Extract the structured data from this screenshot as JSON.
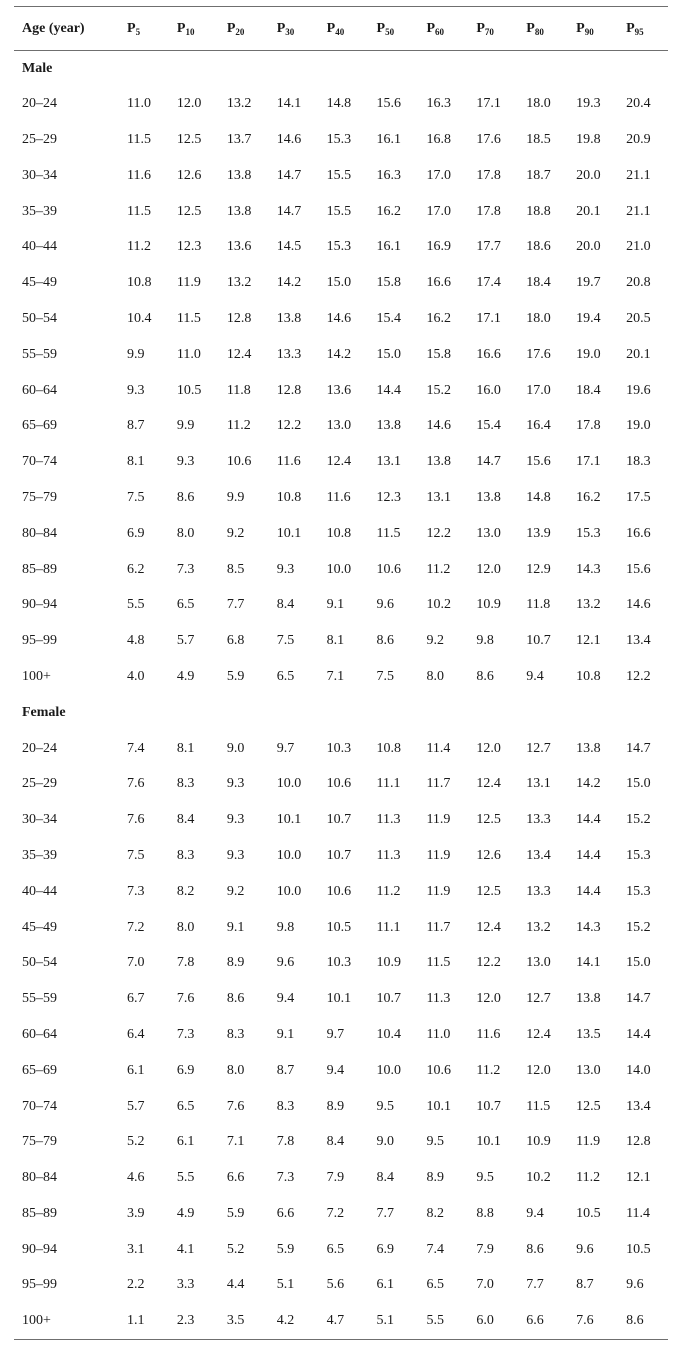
{
  "header": {
    "age_label": "Age (year)",
    "percentiles": [
      {
        "base": "P",
        "sub": "5"
      },
      {
        "base": "P",
        "sub": "10"
      },
      {
        "base": "P",
        "sub": "20"
      },
      {
        "base": "P",
        "sub": "30"
      },
      {
        "base": "P",
        "sub": "40"
      },
      {
        "base": "P",
        "sub": "50"
      },
      {
        "base": "P",
        "sub": "60"
      },
      {
        "base": "P",
        "sub": "70"
      },
      {
        "base": "P",
        "sub": "80"
      },
      {
        "base": "P",
        "sub": "90"
      },
      {
        "base": "P",
        "sub": "95"
      }
    ]
  },
  "groups": [
    {
      "label": "Male",
      "rows": [
        {
          "age": "20–24",
          "values": [
            "11.0",
            "12.0",
            "13.2",
            "14.1",
            "14.8",
            "15.6",
            "16.3",
            "17.1",
            "18.0",
            "19.3",
            "20.4"
          ]
        },
        {
          "age": "25–29",
          "values": [
            "11.5",
            "12.5",
            "13.7",
            "14.6",
            "15.3",
            "16.1",
            "16.8",
            "17.6",
            "18.5",
            "19.8",
            "20.9"
          ]
        },
        {
          "age": "30–34",
          "values": [
            "11.6",
            "12.6",
            "13.8",
            "14.7",
            "15.5",
            "16.3",
            "17.0",
            "17.8",
            "18.7",
            "20.0",
            "21.1"
          ]
        },
        {
          "age": "35–39",
          "values": [
            "11.5",
            "12.5",
            "13.8",
            "14.7",
            "15.5",
            "16.2",
            "17.0",
            "17.8",
            "18.8",
            "20.1",
            "21.1"
          ]
        },
        {
          "age": "40–44",
          "values": [
            "11.2",
            "12.3",
            "13.6",
            "14.5",
            "15.3",
            "16.1",
            "16.9",
            "17.7",
            "18.6",
            "20.0",
            "21.0"
          ]
        },
        {
          "age": "45–49",
          "values": [
            "10.8",
            "11.9",
            "13.2",
            "14.2",
            "15.0",
            "15.8",
            "16.6",
            "17.4",
            "18.4",
            "19.7",
            "20.8"
          ]
        },
        {
          "age": "50–54",
          "values": [
            "10.4",
            "11.5",
            "12.8",
            "13.8",
            "14.6",
            "15.4",
            "16.2",
            "17.1",
            "18.0",
            "19.4",
            "20.5"
          ]
        },
        {
          "age": "55–59",
          "values": [
            "9.9",
            "11.0",
            "12.4",
            "13.3",
            "14.2",
            "15.0",
            "15.8",
            "16.6",
            "17.6",
            "19.0",
            "20.1"
          ]
        },
        {
          "age": "60–64",
          "values": [
            "9.3",
            "10.5",
            "11.8",
            "12.8",
            "13.6",
            "14.4",
            "15.2",
            "16.0",
            "17.0",
            "18.4",
            "19.6"
          ]
        },
        {
          "age": "65–69",
          "values": [
            "8.7",
            "9.9",
            "11.2",
            "12.2",
            "13.0",
            "13.8",
            "14.6",
            "15.4",
            "16.4",
            "17.8",
            "19.0"
          ]
        },
        {
          "age": "70–74",
          "values": [
            "8.1",
            "9.3",
            "10.6",
            "11.6",
            "12.4",
            "13.1",
            "13.8",
            "14.7",
            "15.6",
            "17.1",
            "18.3"
          ]
        },
        {
          "age": "75–79",
          "values": [
            "7.5",
            "8.6",
            "9.9",
            "10.8",
            "11.6",
            "12.3",
            "13.1",
            "13.8",
            "14.8",
            "16.2",
            "17.5"
          ]
        },
        {
          "age": "80–84",
          "values": [
            "6.9",
            "8.0",
            "9.2",
            "10.1",
            "10.8",
            "11.5",
            "12.2",
            "13.0",
            "13.9",
            "15.3",
            "16.6"
          ]
        },
        {
          "age": "85–89",
          "values": [
            "6.2",
            "7.3",
            "8.5",
            "9.3",
            "10.0",
            "10.6",
            "11.2",
            "12.0",
            "12.9",
            "14.3",
            "15.6"
          ]
        },
        {
          "age": "90–94",
          "values": [
            "5.5",
            "6.5",
            "7.7",
            "8.4",
            "9.1",
            "9.6",
            "10.2",
            "10.9",
            "11.8",
            "13.2",
            "14.6"
          ]
        },
        {
          "age": "95–99",
          "values": [
            "4.8",
            "5.7",
            "6.8",
            "7.5",
            "8.1",
            "8.6",
            "9.2",
            "9.8",
            "10.7",
            "12.1",
            "13.4"
          ]
        },
        {
          "age": "100+",
          "values": [
            "4.0",
            "4.9",
            "5.9",
            "6.5",
            "7.1",
            "7.5",
            "8.0",
            "8.6",
            "9.4",
            "10.8",
            "12.2"
          ]
        }
      ]
    },
    {
      "label": "Female",
      "rows": [
        {
          "age": "20–24",
          "values": [
            "7.4",
            "8.1",
            "9.0",
            "9.7",
            "10.3",
            "10.8",
            "11.4",
            "12.0",
            "12.7",
            "13.8",
            "14.7"
          ]
        },
        {
          "age": "25–29",
          "values": [
            "7.6",
            "8.3",
            "9.3",
            "10.0",
            "10.6",
            "11.1",
            "11.7",
            "12.4",
            "13.1",
            "14.2",
            "15.0"
          ]
        },
        {
          "age": "30–34",
          "values": [
            "7.6",
            "8.4",
            "9.3",
            "10.1",
            "10.7",
            "11.3",
            "11.9",
            "12.5",
            "13.3",
            "14.4",
            "15.2"
          ]
        },
        {
          "age": "35–39",
          "values": [
            "7.5",
            "8.3",
            "9.3",
            "10.0",
            "10.7",
            "11.3",
            "11.9",
            "12.6",
            "13.4",
            "14.4",
            "15.3"
          ]
        },
        {
          "age": "40–44",
          "values": [
            "7.3",
            "8.2",
            "9.2",
            "10.0",
            "10.6",
            "11.2",
            "11.9",
            "12.5",
            "13.3",
            "14.4",
            "15.3"
          ]
        },
        {
          "age": "45–49",
          "values": [
            "7.2",
            "8.0",
            "9.1",
            "9.8",
            "10.5",
            "11.1",
            "11.7",
            "12.4",
            "13.2",
            "14.3",
            "15.2"
          ]
        },
        {
          "age": "50–54",
          "values": [
            "7.0",
            "7.8",
            "8.9",
            "9.6",
            "10.3",
            "10.9",
            "11.5",
            "12.2",
            "13.0",
            "14.1",
            "15.0"
          ]
        },
        {
          "age": "55–59",
          "values": [
            "6.7",
            "7.6",
            "8.6",
            "9.4",
            "10.1",
            "10.7",
            "11.3",
            "12.0",
            "12.7",
            "13.8",
            "14.7"
          ]
        },
        {
          "age": "60–64",
          "values": [
            "6.4",
            "7.3",
            "8.3",
            "9.1",
            "9.7",
            "10.4",
            "11.0",
            "11.6",
            "12.4",
            "13.5",
            "14.4"
          ]
        },
        {
          "age": "65–69",
          "values": [
            "6.1",
            "6.9",
            "8.0",
            "8.7",
            "9.4",
            "10.0",
            "10.6",
            "11.2",
            "12.0",
            "13.0",
            "14.0"
          ]
        },
        {
          "age": "70–74",
          "values": [
            "5.7",
            "6.5",
            "7.6",
            "8.3",
            "8.9",
            "9.5",
            "10.1",
            "10.7",
            "11.5",
            "12.5",
            "13.4"
          ]
        },
        {
          "age": "75–79",
          "values": [
            "5.2",
            "6.1",
            "7.1",
            "7.8",
            "8.4",
            "9.0",
            "9.5",
            "10.1",
            "10.9",
            "11.9",
            "12.8"
          ]
        },
        {
          "age": "80–84",
          "values": [
            "4.6",
            "5.5",
            "6.6",
            "7.3",
            "7.9",
            "8.4",
            "8.9",
            "9.5",
            "10.2",
            "11.2",
            "12.1"
          ]
        },
        {
          "age": "85–89",
          "values": [
            "3.9",
            "4.9",
            "5.9",
            "6.6",
            "7.2",
            "7.7",
            "8.2",
            "8.8",
            "9.4",
            "10.5",
            "11.4"
          ]
        },
        {
          "age": "90–94",
          "values": [
            "3.1",
            "4.1",
            "5.2",
            "5.9",
            "6.5",
            "6.9",
            "7.4",
            "7.9",
            "8.6",
            "9.6",
            "10.5"
          ]
        },
        {
          "age": "95–99",
          "values": [
            "2.2",
            "3.3",
            "4.4",
            "5.1",
            "5.6",
            "6.1",
            "6.5",
            "7.0",
            "7.7",
            "8.7",
            "9.6"
          ]
        },
        {
          "age": "100+",
          "values": [
            "1.1",
            "2.3",
            "3.5",
            "4.2",
            "4.7",
            "5.1",
            "5.5",
            "6.0",
            "6.6",
            "7.6",
            "8.6"
          ]
        }
      ]
    }
  ]
}
